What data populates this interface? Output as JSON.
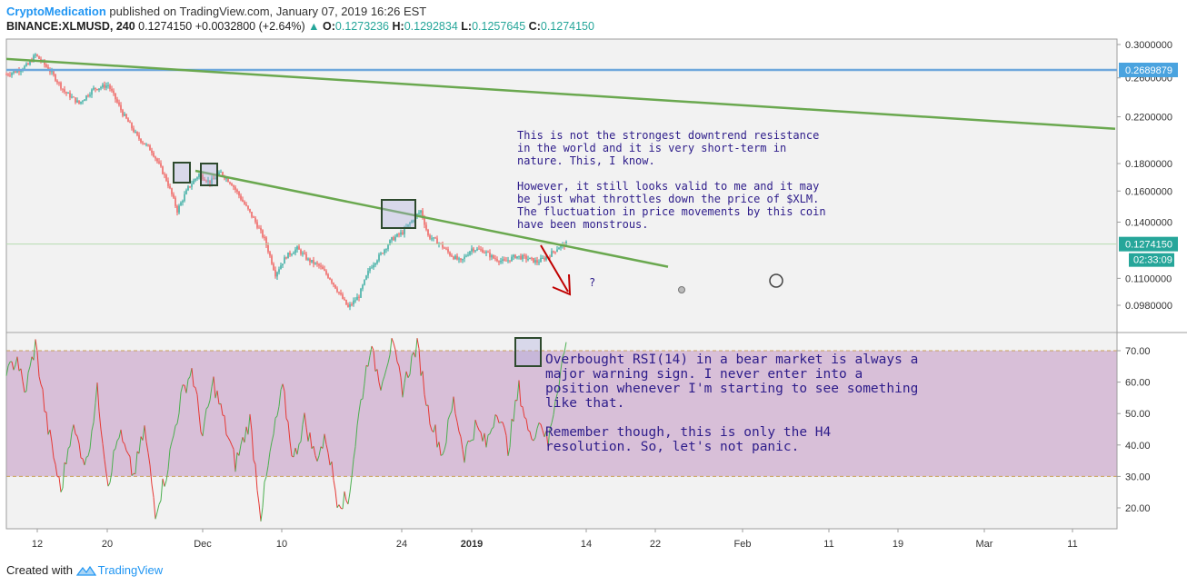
{
  "header": {
    "author": "CryptoMedication",
    "published": "published on TradingView.com, January 07, 2019 16:26 EST",
    "symbol": "BINANCE:XLMUSD, 240",
    "last": "0.1274150",
    "change": "+0.0032800 (+2.64%)",
    "o_label": "O:",
    "o": "0.1273236",
    "h_label": "H:",
    "h": "0.1292834",
    "l_label": "L:",
    "l": "0.1257645",
    "c_label": "C:",
    "c": "0.1274150"
  },
  "annotations": {
    "note1": "This is not the strongest downtrend resistance\nin the world and it is very short-term in\nnature. This, I know.\n\nHowever, it still looks valid to me and it may\nbe just what throttles down the price of $XLM.\nThe fluctuation in price movements by this coin\nhave been monstrous.",
    "note2": "Overbought RSI(14) in a bear market is always a\nmajor warning sign. I never enter into a\nposition whenever I'm starting to see something\nlike that.\n\nRemember though, this is only the H4\nresolution. So, let's not panic.",
    "question": "?"
  },
  "footer": {
    "created": "Created with",
    "brand": "TradingView"
  },
  "chart_data": {
    "type": "candlestick+rsi",
    "symbol": "BINANCE:XLMUSD",
    "interval": "240",
    "price_axis": {
      "scale": "log",
      "ticks": [
        "0.3000000",
        "0.2600000",
        "0.2200000",
        "0.1800000",
        "0.1600000",
        "0.1400000",
        "0.1100000",
        "0.0980000"
      ],
      "labels": {
        "horizontal_level": "0.2689879",
        "last_price": "0.1274150",
        "countdown": "02:33:09"
      }
    },
    "x_ticks": [
      "12",
      "20",
      "Dec",
      "10",
      "24",
      "2019",
      "14",
      "22",
      "Feb",
      "11",
      "19",
      "Mar",
      "11"
    ],
    "price_path": [
      {
        "t": 0,
        "p": 0.264
      },
      {
        "t": 6,
        "p": 0.268
      },
      {
        "t": 12,
        "p": 0.275
      },
      {
        "t": 16,
        "p": 0.287
      },
      {
        "t": 24,
        "p": 0.268
      },
      {
        "t": 32,
        "p": 0.245
      },
      {
        "t": 40,
        "p": 0.233
      },
      {
        "t": 48,
        "p": 0.248
      },
      {
        "t": 56,
        "p": 0.252
      },
      {
        "t": 64,
        "p": 0.223
      },
      {
        "t": 72,
        "p": 0.202
      },
      {
        "t": 80,
        "p": 0.19
      },
      {
        "t": 88,
        "p": 0.168
      },
      {
        "t": 94,
        "p": 0.147
      },
      {
        "t": 100,
        "p": 0.162
      },
      {
        "t": 106,
        "p": 0.172
      },
      {
        "t": 112,
        "p": 0.166
      },
      {
        "t": 118,
        "p": 0.173
      },
      {
        "t": 124,
        "p": 0.165
      },
      {
        "t": 130,
        "p": 0.153
      },
      {
        "t": 136,
        "p": 0.142
      },
      {
        "t": 142,
        "p": 0.13
      },
      {
        "t": 148,
        "p": 0.112
      },
      {
        "t": 154,
        "p": 0.121
      },
      {
        "t": 160,
        "p": 0.125
      },
      {
        "t": 166,
        "p": 0.119
      },
      {
        "t": 172,
        "p": 0.116
      },
      {
        "t": 178,
        "p": 0.11
      },
      {
        "t": 184,
        "p": 0.102
      },
      {
        "t": 188,
        "p": 0.097
      },
      {
        "t": 194,
        "p": 0.102
      },
      {
        "t": 200,
        "p": 0.115
      },
      {
        "t": 206,
        "p": 0.122
      },
      {
        "t": 212,
        "p": 0.13
      },
      {
        "t": 218,
        "p": 0.134
      },
      {
        "t": 224,
        "p": 0.142
      },
      {
        "t": 228,
        "p": 0.147
      },
      {
        "t": 232,
        "p": 0.132
      },
      {
        "t": 238,
        "p": 0.128
      },
      {
        "t": 244,
        "p": 0.122
      },
      {
        "t": 250,
        "p": 0.118
      },
      {
        "t": 256,
        "p": 0.125
      },
      {
        "t": 262,
        "p": 0.124
      },
      {
        "t": 268,
        "p": 0.12
      },
      {
        "t": 274,
        "p": 0.118
      },
      {
        "t": 280,
        "p": 0.121
      },
      {
        "t": 286,
        "p": 0.12
      },
      {
        "t": 292,
        "p": 0.118
      },
      {
        "t": 298,
        "p": 0.121
      },
      {
        "t": 304,
        "p": 0.126
      },
      {
        "t": 308,
        "p": 0.1274
      }
    ],
    "rsi": {
      "period": 14,
      "axis_ticks": [
        "70.00",
        "60.00",
        "50.00",
        "40.00",
        "30.00",
        "20.00"
      ],
      "overbought": 70,
      "oversold": 30,
      "path": [
        {
          "t": 0,
          "v": 62
        },
        {
          "t": 6,
          "v": 68
        },
        {
          "t": 10,
          "v": 56
        },
        {
          "t": 16,
          "v": 72
        },
        {
          "t": 22,
          "v": 48
        },
        {
          "t": 30,
          "v": 25
        },
        {
          "t": 36,
          "v": 46
        },
        {
          "t": 44,
          "v": 34
        },
        {
          "t": 50,
          "v": 57
        },
        {
          "t": 56,
          "v": 28
        },
        {
          "t": 62,
          "v": 44
        },
        {
          "t": 70,
          "v": 30
        },
        {
          "t": 76,
          "v": 45
        },
        {
          "t": 82,
          "v": 19
        },
        {
          "t": 88,
          "v": 31
        },
        {
          "t": 96,
          "v": 55
        },
        {
          "t": 102,
          "v": 64
        },
        {
          "t": 108,
          "v": 43
        },
        {
          "t": 114,
          "v": 60
        },
        {
          "t": 120,
          "v": 47
        },
        {
          "t": 126,
          "v": 34
        },
        {
          "t": 134,
          "v": 48
        },
        {
          "t": 140,
          "v": 18
        },
        {
          "t": 146,
          "v": 40
        },
        {
          "t": 152,
          "v": 58
        },
        {
          "t": 158,
          "v": 35
        },
        {
          "t": 164,
          "v": 48
        },
        {
          "t": 170,
          "v": 36
        },
        {
          "t": 176,
          "v": 42
        },
        {
          "t": 182,
          "v": 23
        },
        {
          "t": 188,
          "v": 22
        },
        {
          "t": 194,
          "v": 50
        },
        {
          "t": 200,
          "v": 71
        },
        {
          "t": 206,
          "v": 60
        },
        {
          "t": 212,
          "v": 72
        },
        {
          "t": 218,
          "v": 58
        },
        {
          "t": 226,
          "v": 72
        },
        {
          "t": 232,
          "v": 51
        },
        {
          "t": 240,
          "v": 37
        },
        {
          "t": 246,
          "v": 54
        },
        {
          "t": 252,
          "v": 37
        },
        {
          "t": 258,
          "v": 46
        },
        {
          "t": 264,
          "v": 40
        },
        {
          "t": 270,
          "v": 52
        },
        {
          "t": 276,
          "v": 39
        },
        {
          "t": 282,
          "v": 58
        },
        {
          "t": 288,
          "v": 42
        },
        {
          "t": 294,
          "v": 48
        },
        {
          "t": 298,
          "v": 40
        },
        {
          "t": 302,
          "v": 55
        },
        {
          "t": 306,
          "v": 67
        },
        {
          "t": 308,
          "v": 72
        }
      ]
    },
    "resistance_lines": [
      {
        "from": {
          "t": 0,
          "p": 0.282
        },
        "to": {
          "t": 610,
          "p": 0.209
        }
      },
      {
        "from": {
          "t": 104,
          "p": 0.1745
        },
        "to": {
          "t": 364,
          "p": 0.1156
        }
      }
    ],
    "colors": {
      "up": "#26a69a",
      "down": "#ef5350",
      "rsi_up": "#4caf50",
      "rsi_down": "#e53935",
      "trendline": "#6aa84f",
      "hline": "#6fa8dc",
      "rsi_band": "#d8bfd8",
      "arrow": "#c00000",
      "note": "#2d1c8a",
      "axis_label": "#4aa3df",
      "price_label": "#26a69a"
    }
  }
}
